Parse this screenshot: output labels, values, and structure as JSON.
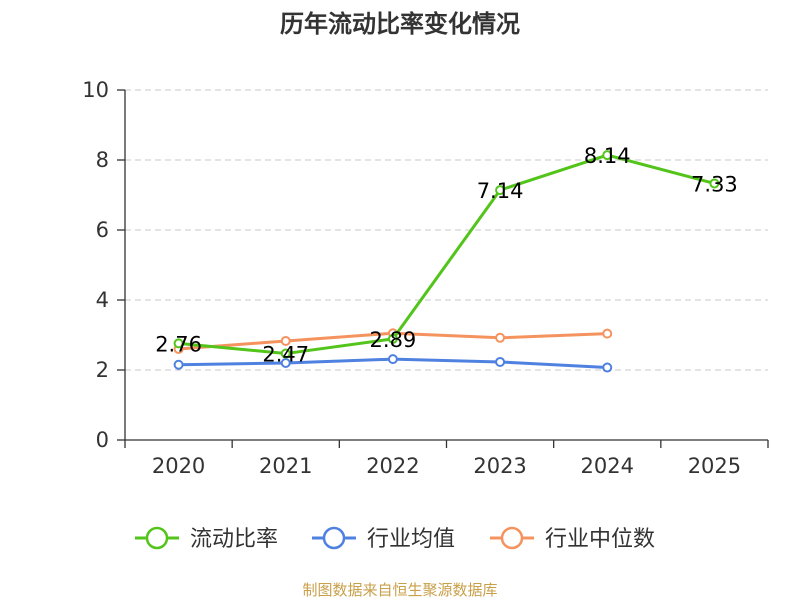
{
  "chart_data": {
    "type": "line",
    "title": "历年流动比率变化情况",
    "categories": [
      "2020",
      "2021",
      "2022",
      "2023",
      "2024",
      "2025"
    ],
    "ylim": [
      0,
      10
    ],
    "yticks": [
      0,
      2,
      4,
      6,
      8,
      10
    ],
    "grid": true,
    "legend_position": "bottom",
    "series": [
      {
        "name": "流动比率",
        "color": "#52c41a",
        "values": [
          2.76,
          2.47,
          2.89,
          7.14,
          8.14,
          7.33
        ],
        "labels": [
          "2.76",
          "2.47",
          "2.89",
          "7.14",
          "8.14",
          "7.33"
        ]
      },
      {
        "name": "行业均值",
        "color": "#4f81e0",
        "values": [
          2.15,
          2.2,
          2.31,
          2.23,
          2.07,
          null
        ]
      },
      {
        "name": "行业中位数",
        "color": "#f5935f",
        "values": [
          2.6,
          2.83,
          3.05,
          2.92,
          3.04,
          null
        ]
      }
    ]
  },
  "source": "制图数据来自恒生聚源数据库"
}
